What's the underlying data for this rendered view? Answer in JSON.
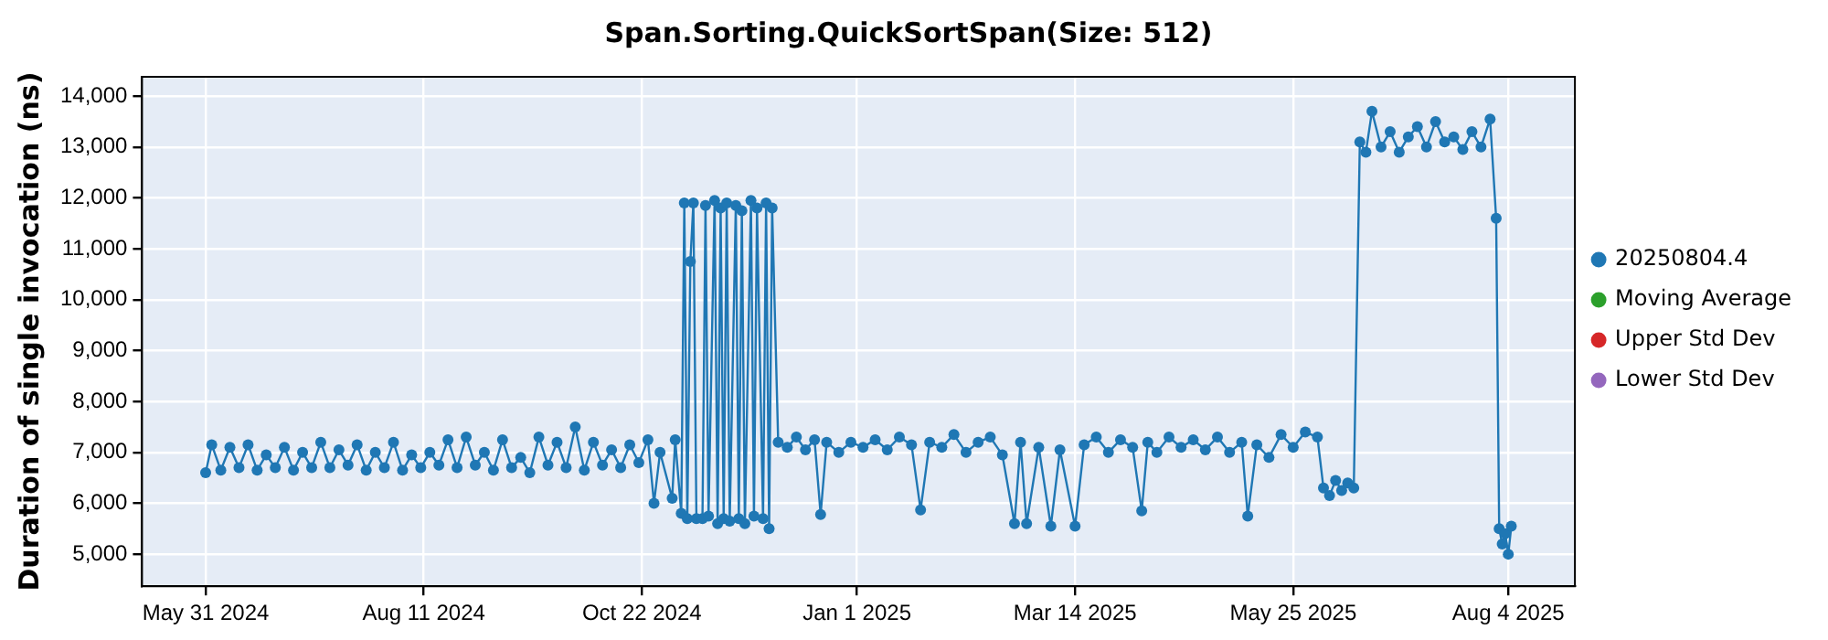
{
  "chart_data": {
    "type": "line",
    "title": "Span.Sorting.QuickSortSpan(Size: 512)",
    "ylabel": "Duration of single invocation (ns)",
    "x": [
      "2024-05-31",
      "2024-06-02",
      "2024-06-05",
      "2024-06-08",
      "2024-06-11",
      "2024-06-14",
      "2024-06-17",
      "2024-06-20",
      "2024-06-23",
      "2024-06-26",
      "2024-06-29",
      "2024-07-02",
      "2024-07-05",
      "2024-07-08",
      "2024-07-11",
      "2024-07-14",
      "2024-07-17",
      "2024-07-20",
      "2024-07-23",
      "2024-07-26",
      "2024-07-29",
      "2024-08-01",
      "2024-08-04",
      "2024-08-07",
      "2024-08-10",
      "2024-08-13",
      "2024-08-16",
      "2024-08-19",
      "2024-08-22",
      "2024-08-25",
      "2024-08-28",
      "2024-08-31",
      "2024-09-03",
      "2024-09-06",
      "2024-09-09",
      "2024-09-12",
      "2024-09-15",
      "2024-09-18",
      "2024-09-21",
      "2024-09-24",
      "2024-09-27",
      "2024-09-30",
      "2024-10-03",
      "2024-10-06",
      "2024-10-09",
      "2024-10-12",
      "2024-10-15",
      "2024-10-18",
      "2024-10-21",
      "2024-10-24",
      "2024-10-26",
      "2024-10-28",
      "2024-11-01",
      "2024-11-02",
      "2024-11-04",
      "2024-11-05",
      "2024-11-06",
      "2024-11-07",
      "2024-11-08",
      "2024-11-09",
      "2024-11-11",
      "2024-11-12",
      "2024-11-13",
      "2024-11-15",
      "2024-11-16",
      "2024-11-17",
      "2024-11-18",
      "2024-11-19",
      "2024-11-20",
      "2024-11-22",
      "2024-11-23",
      "2024-11-24",
      "2024-11-25",
      "2024-11-27",
      "2024-11-28",
      "2024-11-29",
      "2024-12-01",
      "2024-12-02",
      "2024-12-03",
      "2024-12-04",
      "2024-12-06",
      "2024-12-09",
      "2024-12-12",
      "2024-12-15",
      "2024-12-18",
      "2024-12-20",
      "2024-12-22",
      "2024-12-26",
      "2024-12-30",
      "2025-01-03",
      "2025-01-07",
      "2025-01-11",
      "2025-01-15",
      "2025-01-19",
      "2025-01-22",
      "2025-01-25",
      "2025-01-29",
      "2025-02-02",
      "2025-02-06",
      "2025-02-10",
      "2025-02-14",
      "2025-02-18",
      "2025-02-22",
      "2025-02-24",
      "2025-02-26",
      "2025-03-02",
      "2025-03-06",
      "2025-03-09",
      "2025-03-14",
      "2025-03-17",
      "2025-03-21",
      "2025-03-25",
      "2025-03-29",
      "2025-04-02",
      "2025-04-05",
      "2025-04-07",
      "2025-04-10",
      "2025-04-14",
      "2025-04-18",
      "2025-04-22",
      "2025-04-26",
      "2025-04-30",
      "2025-05-04",
      "2025-05-08",
      "2025-05-10",
      "2025-05-13",
      "2025-05-17",
      "2025-05-21",
      "2025-05-25",
      "2025-05-29",
      "2025-06-02",
      "2025-06-04",
      "2025-06-06",
      "2025-06-08",
      "2025-06-10",
      "2025-06-12",
      "2025-06-14",
      "2025-06-16",
      "2025-06-18",
      "2025-06-20",
      "2025-06-23",
      "2025-06-26",
      "2025-06-29",
      "2025-07-02",
      "2025-07-05",
      "2025-07-08",
      "2025-07-11",
      "2025-07-14",
      "2025-07-17",
      "2025-07-20",
      "2025-07-23",
      "2025-07-26",
      "2025-07-29",
      "2025-07-31",
      "2025-08-01",
      "2025-08-02",
      "2025-08-03",
      "2025-08-04",
      "2025-08-05"
    ],
    "series": [
      {
        "name": "20250804.4",
        "color": "#1f77b4",
        "values": [
          6600,
          7150,
          6650,
          7100,
          6700,
          7150,
          6650,
          6950,
          6700,
          7100,
          6650,
          7000,
          6700,
          7200,
          6700,
          7050,
          6750,
          7150,
          6650,
          7000,
          6700,
          7200,
          6650,
          6950,
          6700,
          7000,
          6750,
          7250,
          6700,
          7300,
          6750,
          7000,
          6650,
          7250,
          6700,
          6900,
          6600,
          7300,
          6750,
          7200,
          6700,
          7500,
          6650,
          7200,
          6750,
          7050,
          6700,
          7150,
          6800,
          7250,
          6000,
          7000,
          6100,
          7250,
          5800,
          11900,
          5700,
          10750,
          11900,
          5700,
          5700,
          11850,
          5750,
          11950,
          5600,
          11800,
          5700,
          11900,
          5650,
          11850,
          5700,
          11750,
          5600,
          11950,
          5750,
          11800,
          5700,
          11900,
          5500,
          11800,
          7200,
          7100,
          7300,
          7050,
          7250,
          5780,
          7200,
          7000,
          7200,
          7100,
          7250,
          7050,
          7300,
          7150,
          5870,
          7200,
          7100,
          7350,
          7000,
          7200,
          7300,
          6950,
          5600,
          7200,
          5600,
          7100,
          5550,
          7050,
          5550,
          7150,
          7300,
          7000,
          7250,
          7100,
          5850,
          7200,
          7000,
          7300,
          7100,
          7250,
          7050,
          7300,
          7000,
          7200,
          5750,
          7150,
          6900,
          7350,
          7100,
          7400,
          7300,
          6300,
          6150,
          6450,
          6250,
          6400,
          6300,
          13100,
          12900,
          13700,
          13000,
          13300,
          12900,
          13200,
          13400,
          13000,
          13500,
          13100,
          13200,
          12950,
          13300,
          13000,
          13550,
          11600,
          5500,
          5200,
          5400,
          5000,
          5550
        ]
      },
      {
        "name": "Moving Average",
        "color": "#2ca02c",
        "values": [
          null,
          null,
          null,
          null,
          null,
          null,
          null,
          null,
          null,
          null,
          null,
          null,
          null,
          null,
          null,
          null,
          null,
          null,
          null,
          null,
          null,
          null,
          null,
          null,
          null,
          null,
          null,
          null,
          null,
          null,
          null,
          null,
          null,
          null,
          null,
          null,
          null,
          null,
          null,
          null,
          null,
          null,
          null,
          null,
          null,
          null,
          null,
          null,
          null,
          null,
          null,
          null,
          null,
          null,
          null,
          null,
          null,
          null,
          null,
          null,
          null,
          null,
          null,
          null,
          null,
          null,
          null,
          null,
          null,
          null,
          null,
          null,
          null,
          null,
          null,
          null,
          null,
          null,
          null,
          null,
          null,
          null,
          null,
          null,
          null,
          null,
          null,
          null,
          null,
          null,
          null,
          null,
          null,
          null,
          null,
          null,
          null,
          null,
          null,
          null,
          null,
          null,
          null,
          null,
          null,
          null,
          null,
          null,
          null,
          null,
          null,
          null,
          null,
          null,
          null,
          null,
          null,
          null,
          null,
          null,
          null,
          null,
          null,
          null,
          null,
          null,
          null,
          null,
          null,
          null,
          null,
          null,
          null,
          null,
          null,
          null,
          null,
          null,
          null,
          null,
          null,
          null,
          null,
          null,
          null,
          null,
          null,
          null,
          null,
          null,
          null,
          null,
          null,
          null,
          null,
          null,
          null,
          null,
          null
        ]
      },
      {
        "name": "Upper Std Dev",
        "color": "#d62728",
        "values": [
          null,
          null,
          null,
          null,
          null,
          null,
          null,
          null,
          null,
          null,
          null,
          null,
          null,
          null,
          null,
          null,
          null,
          null,
          null,
          null,
          null,
          null,
          null,
          null,
          null,
          null,
          null,
          null,
          null,
          null,
          null,
          null,
          null,
          null,
          null,
          null,
          null,
          null,
          null,
          null,
          null,
          null,
          null,
          null,
          null,
          null,
          null,
          null,
          null,
          null,
          null,
          null,
          null,
          null,
          null,
          null,
          null,
          null,
          null,
          null,
          null,
          null,
          null,
          null,
          null,
          null,
          null,
          null,
          null,
          null,
          null,
          null,
          null,
          null,
          null,
          null,
          null,
          null,
          null,
          null,
          null,
          null,
          null,
          null,
          null,
          null,
          null,
          null,
          null,
          null,
          null,
          null,
          null,
          null,
          null,
          null,
          null,
          null,
          null,
          null,
          null,
          null,
          null,
          null,
          null,
          null,
          null,
          null,
          null,
          null,
          null,
          null,
          null,
          null,
          null,
          null,
          null,
          null,
          null,
          null,
          null,
          null,
          null,
          null,
          null,
          null,
          null,
          null,
          null,
          null,
          null,
          null,
          null,
          null,
          null,
          null,
          null,
          null,
          null,
          null,
          null,
          null,
          null,
          null,
          null,
          null,
          null,
          null,
          null,
          null,
          null,
          null,
          null,
          null,
          null,
          null,
          null,
          null,
          null
        ]
      },
      {
        "name": "Lower Std Dev",
        "color": "#9467bd",
        "values": [
          null,
          null,
          null,
          null,
          null,
          null,
          null,
          null,
          null,
          null,
          null,
          null,
          null,
          null,
          null,
          null,
          null,
          null,
          null,
          null,
          null,
          null,
          null,
          null,
          null,
          null,
          null,
          null,
          null,
          null,
          null,
          null,
          null,
          null,
          null,
          null,
          null,
          null,
          null,
          null,
          null,
          null,
          null,
          null,
          null,
          null,
          null,
          null,
          null,
          null,
          null,
          null,
          null,
          null,
          null,
          null,
          null,
          null,
          null,
          null,
          null,
          null,
          null,
          null,
          null,
          null,
          null,
          null,
          null,
          null,
          null,
          null,
          null,
          null,
          null,
          null,
          null,
          null,
          null,
          null,
          null,
          null,
          null,
          null,
          null,
          null,
          null,
          null,
          null,
          null,
          null,
          null,
          null,
          null,
          null,
          null,
          null,
          null,
          null,
          null,
          null,
          null,
          null,
          null,
          null,
          null,
          null,
          null,
          null,
          null,
          null,
          null,
          null,
          null,
          null,
          null,
          null,
          null,
          null,
          null,
          null,
          null,
          null,
          null,
          null,
          null,
          null,
          null,
          null,
          null,
          null,
          null,
          null,
          null,
          null,
          null,
          null,
          null,
          null,
          null,
          null,
          null,
          null,
          null,
          null,
          null,
          null,
          null,
          null,
          null,
          null,
          null,
          null,
          null,
          null,
          null,
          null,
          null,
          null
        ]
      }
    ],
    "xlim": [
      "2024-05-10",
      "2025-08-26"
    ],
    "xticks": [
      {
        "value": "2024-05-31",
        "label": "May 31 2024"
      },
      {
        "value": "2024-08-11",
        "label": "Aug 11 2024"
      },
      {
        "value": "2024-10-22",
        "label": "Oct 22 2024"
      },
      {
        "value": "2025-01-01",
        "label": "Jan 1 2025"
      },
      {
        "value": "2025-03-14",
        "label": "Mar 14 2025"
      },
      {
        "value": "2025-05-25",
        "label": "May 25 2025"
      },
      {
        "value": "2025-08-04",
        "label": "Aug 4 2025"
      }
    ],
    "ylim": [
      4370,
      14380
    ],
    "yticks": [
      {
        "value": 5000,
        "label": "5,000"
      },
      {
        "value": 6000,
        "label": "6,000"
      },
      {
        "value": 7000,
        "label": "7,000"
      },
      {
        "value": 8000,
        "label": "8,000"
      },
      {
        "value": 9000,
        "label": "9,000"
      },
      {
        "value": 10000,
        "label": "10,000"
      },
      {
        "value": 11000,
        "label": "11,000"
      },
      {
        "value": 12000,
        "label": "12,000"
      },
      {
        "value": 13000,
        "label": "13,000"
      },
      {
        "value": 14000,
        "label": "14,000"
      }
    ],
    "grid": true,
    "legend": "right",
    "marker": "circle",
    "line_style": "solid"
  }
}
